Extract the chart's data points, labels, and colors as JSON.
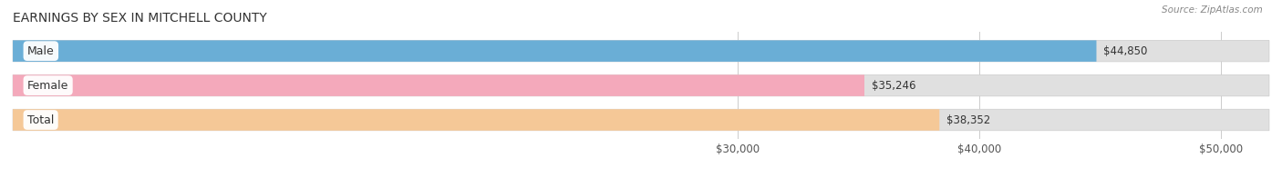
{
  "title": "EARNINGS BY SEX IN MITCHELL COUNTY",
  "source": "Source: ZipAtlas.com",
  "categories": [
    "Male",
    "Female",
    "Total"
  ],
  "values": [
    44850,
    35246,
    38352
  ],
  "bar_colors": [
    "#6aaed6",
    "#f4a9bb",
    "#f5c897"
  ],
  "bar_bg_color": "#e0e0e0",
  "background_color": "#ffffff",
  "xmin": 0,
  "xmax": 52000,
  "xticks": [
    30000,
    40000,
    50000
  ],
  "xtick_labels": [
    "$30,000",
    "$40,000",
    "$50,000"
  ],
  "figsize": [
    14.06,
    1.96
  ],
  "dpi": 100,
  "title_fontsize": 10,
  "tick_fontsize": 8.5,
  "bar_label_fontsize": 8.5,
  "category_fontsize": 9
}
